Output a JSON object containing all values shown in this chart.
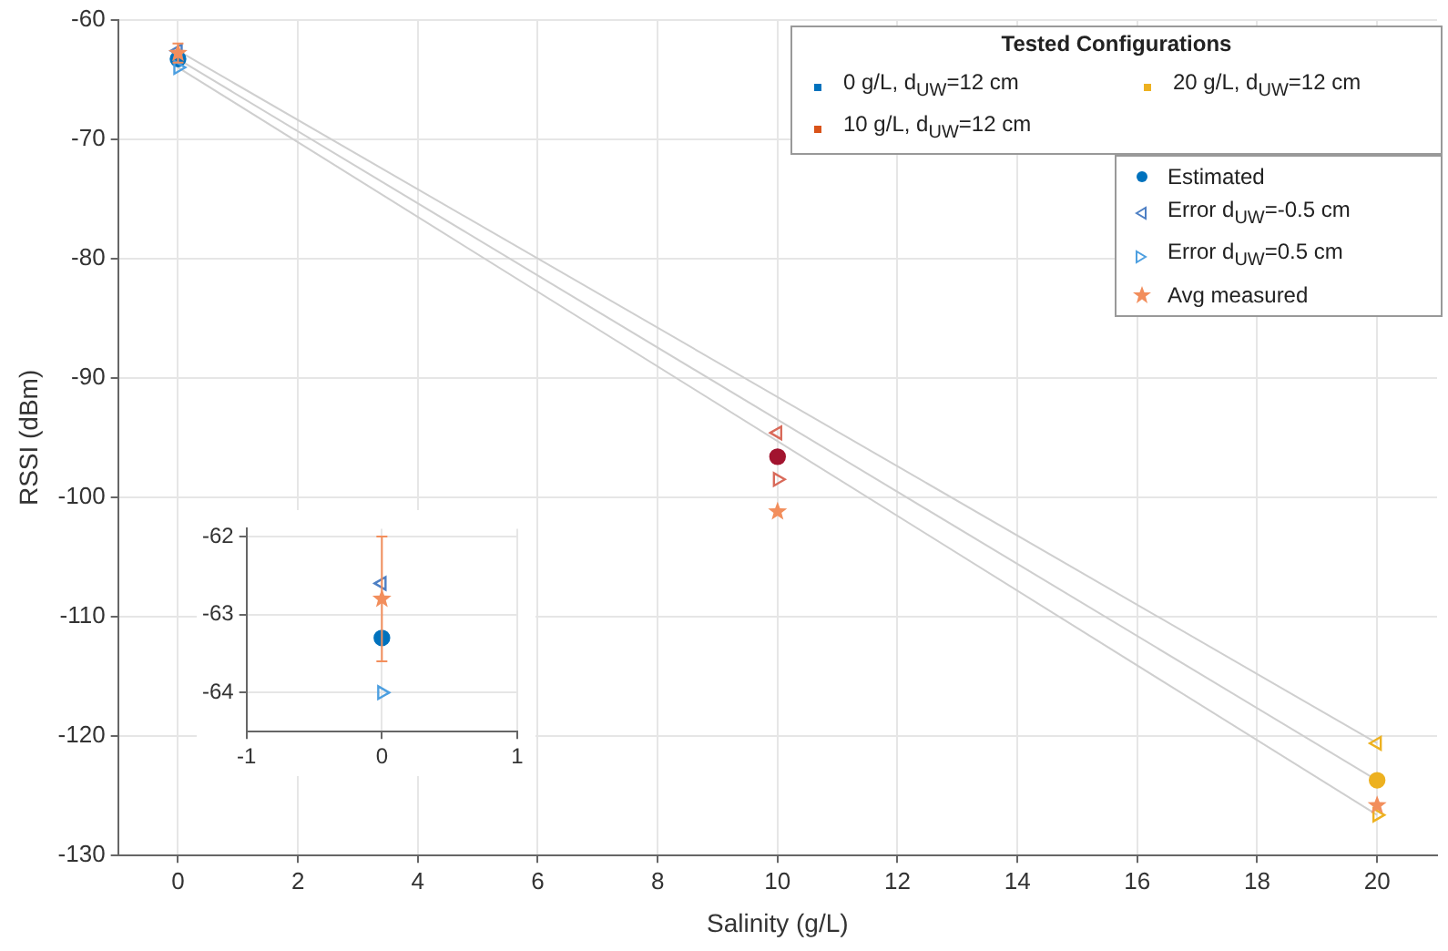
{
  "chart_data": [
    {
      "type": "scatter",
      "xlabel": "Salinity (g/L)",
      "ylabel": "RSSI (dBm)",
      "legend_title": "Tested Configurations",
      "legend": "top right",
      "grid": true,
      "xlim": [
        -1,
        21
      ],
      "xticks": [
        0,
        2,
        4,
        6,
        8,
        10,
        12,
        14,
        16,
        18,
        20
      ],
      "ylim": [
        -130,
        -60
      ],
      "yticks": [
        -130,
        -120,
        -110,
        -100,
        -90,
        -80,
        -70,
        -60
      ],
      "series": [
        {
          "type": "line",
          "color": "#cfcfcf",
          "x": [
            0,
            20
          ],
          "values": [
            -62.6,
            -120.6
          ],
          "marker": "none"
        },
        {
          "type": "line",
          "color": "#cfcfcf",
          "x": [
            0,
            20
          ],
          "values": [
            -63.3,
            -123.7
          ],
          "marker": "none"
        },
        {
          "type": "line",
          "color": "#cfcfcf",
          "x": [
            0,
            20
          ],
          "values": [
            -64.0,
            -126.6
          ],
          "marker": "none"
        },
        {
          "name": "0 g/L, d$_{UW}$=12 cm",
          "color": "#0072bd"
        },
        {
          "name": "10 g/L, d$_{UW}$=12 cm",
          "color": "#d95319"
        },
        {
          "name": "20 g/L, d$_{UW}$=12 cm",
          "color": "#edb120"
        },
        {
          "name": "Estimated",
          "color": "#0072bd",
          "colors": [
            "#0072bd",
            "#a2142f",
            "#edb120"
          ],
          "marker": "circle",
          "x": [
            0,
            10,
            20
          ],
          "values": [
            -63.3,
            -96.6,
            -123.7
          ]
        },
        {
          "name": "Error d$_{UW}$=-0.5 cm",
          "color": "#4d7fc4",
          "colors": [
            "#4d7fc4",
            "#d96a5a",
            "#edb120"
          ],
          "marker": "triangle",
          "x": [
            0,
            10,
            20
          ],
          "values": [
            -62.6,
            -94.6,
            -120.6
          ]
        },
        {
          "name": "Error d$_{UW}$=0.5 cm",
          "color": "#4d9fe0",
          "colors": [
            "#4d9fe0",
            "#d96a5a",
            "#edb120"
          ],
          "marker": "triangle",
          "x": [
            0,
            10,
            20
          ],
          "values": [
            -64.0,
            -98.5,
            -126.6
          ]
        },
        {
          "name": "Avg measured",
          "color": "#f28e5c",
          "marker": "star",
          "x": [
            0,
            10,
            20
          ],
          "values": [
            -62.8,
            -101.2,
            -125.8
          ],
          "errors": [
            [
              -63.6,
              -62.0
            ],
            null,
            null
          ]
        }
      ]
    },
    {
      "type": "scatter",
      "grid": true,
      "xlim": [
        -1,
        1
      ],
      "xticks": [
        -1,
        0,
        1
      ],
      "ylim": [
        -64.5,
        -61.9
      ],
      "yticks": [
        -64,
        -63,
        -62
      ],
      "series": [
        {
          "color": "#0072bd",
          "marker": "circle",
          "x": [
            0
          ],
          "values": [
            -63.3
          ]
        },
        {
          "color": "#4d7fc4",
          "marker": "triangle",
          "x": [
            0
          ],
          "values": [
            -62.6
          ]
        },
        {
          "color": "#4d9fe0",
          "marker": "triangle",
          "x": [
            0
          ],
          "values": [
            -64.0
          ]
        },
        {
          "color": "#f28e5c",
          "marker": "star",
          "x": [
            0
          ],
          "values": [
            -62.8
          ],
          "errors": [
            [
              -63.6,
              -62.0
            ]
          ]
        }
      ]
    }
  ]
}
